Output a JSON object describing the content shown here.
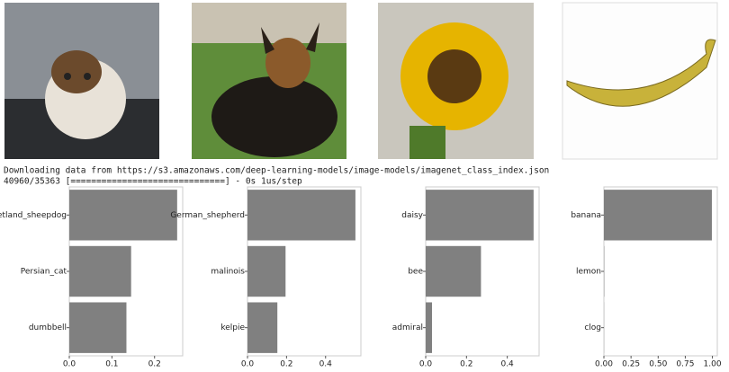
{
  "console": [
    "Downloading data from https://s3.amazonaws.com/deep-learning-models/image-models/imagenet_class_index.json",
    "40960/35363 [==============================] - 0s 1us/step"
  ],
  "chart_data": [
    {
      "type": "barh",
      "categories": [
        "Shetland_sheepdog",
        "Persian_cat",
        "dumbbell"
      ],
      "values": [
        0.253,
        0.145,
        0.134
      ],
      "color": "#808080",
      "xlim": [
        0,
        0.266
      ],
      "xticks": [
        {
          "value": 0,
          "label": "0.0"
        },
        0.1,
        0.2
      ]
    },
    {
      "type": "barh",
      "categories": [
        "German_shepherd",
        "malinois",
        "kelpie"
      ],
      "values": [
        0.553,
        0.195,
        0.153
      ],
      "color": "#808080",
      "xlim": [
        0,
        0.581
      ],
      "xticks": [
        {
          "value": 0,
          "label": "0.0"
        },
        0.2,
        0.4
      ]
    },
    {
      "type": "barh",
      "categories": [
        "daisy",
        "bee",
        "admiral"
      ],
      "values": [
        0.529,
        0.271,
        0.031
      ],
      "color": "#808080",
      "xlim": [
        0,
        0.556
      ],
      "xticks": [
        {
          "value": 0,
          "label": "0.0"
        },
        0.2,
        0.4
      ]
    },
    {
      "type": "barh",
      "categories": [
        "banana",
        "lemon",
        "clog"
      ],
      "values": [
        0.995,
        0.003,
        0.001
      ],
      "color": "#808080",
      "xlim": [
        0,
        1.045
      ],
      "xticks": [
        {
          "value": 0,
          "label": "0.00"
        },
        0.25,
        {
          "value": 0.5,
          "label": "0.50"
        },
        0.75,
        {
          "value": 1,
          "label": "1.00"
        }
      ]
    }
  ]
}
